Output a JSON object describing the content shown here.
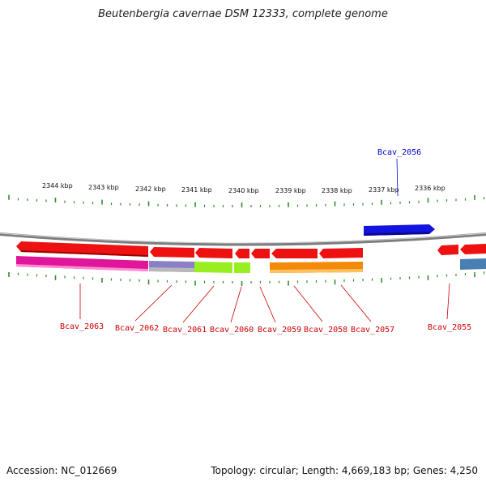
{
  "title": "Beutenbergia cavernae DSM 12333, complete genome",
  "footer": {
    "accession": "Accession: NC_012669",
    "summary": "Topology: circular; Length: 4,669,183 bp; Genes: 4,250"
  },
  "colors": {
    "backbone": "#9a9a9a",
    "tick": "#2f8f2f",
    "forward_gene": "#1414e0",
    "reverse_gene": "#e01010",
    "label_reverse": "#cc0000",
    "label_forward": "#0000cc"
  },
  "scale_labels": [
    "2344 kbp",
    "2343 kbp",
    "2342 kbp",
    "2341 kbp",
    "2340 kbp",
    "2339 kbp",
    "2338 kbp",
    "2337 kbp",
    "2336 kbp"
  ],
  "gene_labels": [
    {
      "text": "Bcav_2063",
      "strand": "reverse"
    },
    {
      "text": "Bcav_2062",
      "strand": "reverse"
    },
    {
      "text": "Bcav_2061",
      "strand": "reverse"
    },
    {
      "text": "Bcav_2060",
      "strand": "reverse"
    },
    {
      "text": "Bcav_2059",
      "strand": "reverse"
    },
    {
      "text": "Bcav_2058",
      "strand": "reverse"
    },
    {
      "text": "Bcav_2057",
      "strand": "reverse"
    },
    {
      "text": "Bcav_2056",
      "strand": "forward"
    },
    {
      "text": "Bcav_2055",
      "strand": "reverse"
    }
  ]
}
